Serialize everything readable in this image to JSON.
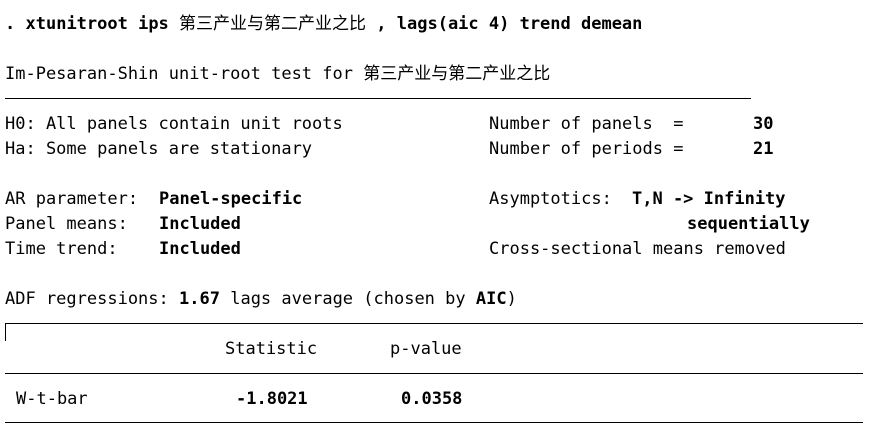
{
  "command": {
    "prompt": ".",
    "text_pre": "xtunitroot ips",
    "varname": "第三产业与第二产业之比",
    "text_post": ", lags(aic 4) trend demean"
  },
  "test_title": {
    "prefix": "Im-Pesaran-Shin unit-root test for",
    "varname": "第三产业与第二产业之比"
  },
  "hypotheses": {
    "h0": "H0: All panels contain unit roots",
    "ha": "Ha: Some panels are stationary"
  },
  "panel_info": {
    "panels_label": "Number of panels  =",
    "panels_value": "30",
    "periods_label": "Number of periods =",
    "periods_value": "21"
  },
  "settings": {
    "ar_label": "AR parameter:",
    "ar_value": "Panel-specific",
    "means_label": "Panel means:",
    "means_value": "Included",
    "trend_label": "Time trend:",
    "trend_value": "Included",
    "asym_label": "Asymptotics:",
    "asym_value": "T,N -> Infinity",
    "asym_value2": "sequentially",
    "cs_means": "Cross-sectional means removed"
  },
  "adf": {
    "label": "ADF regressions:",
    "lags": "1.67",
    "mid": "lags average (chosen by",
    "criterion": "AIC",
    "close": ")"
  },
  "results_table": {
    "headers": [
      "Statistic",
      "p-value"
    ],
    "row": {
      "name": "W-t-bar",
      "statistic": "-1.8021",
      "pvalue": "0.0358"
    }
  }
}
